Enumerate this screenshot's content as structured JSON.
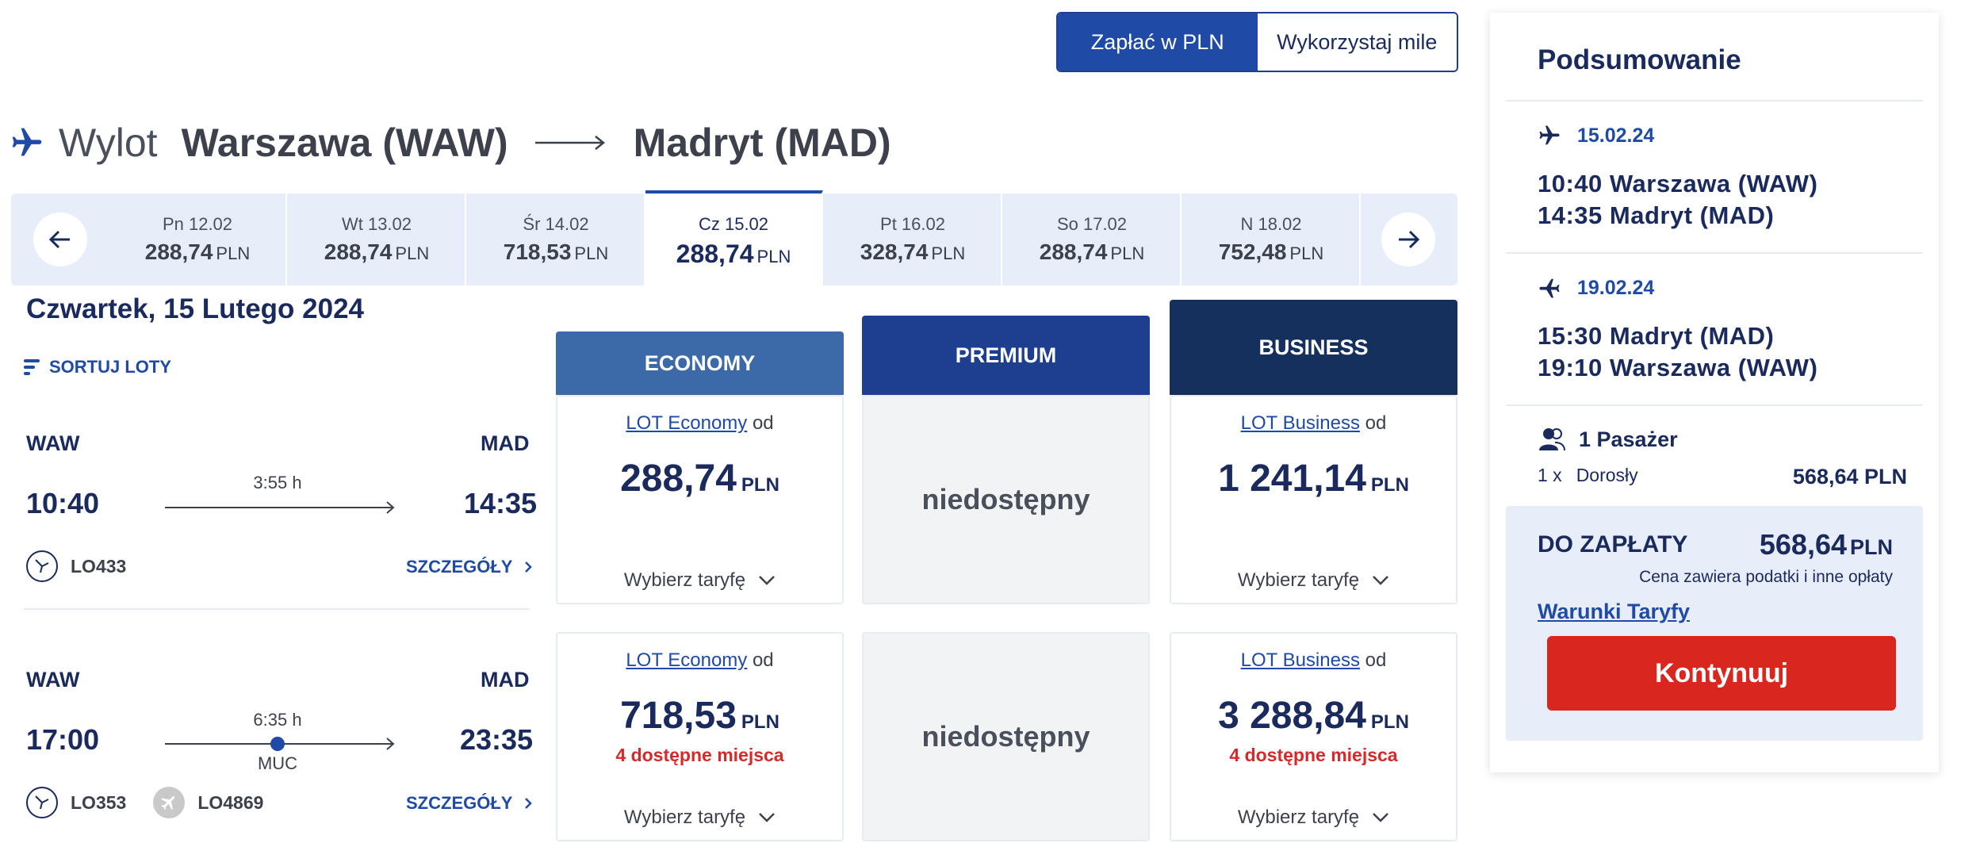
{
  "pay_toggle": {
    "pln": "Zapłać w PLN",
    "miles": "Wykorzystaj mile"
  },
  "route": {
    "label": "Wylot",
    "from": "Warszawa (WAW)",
    "to": "Madryt (MAD)"
  },
  "dates": [
    {
      "day": "Pn 12.02",
      "price": "288,74",
      "cur": "PLN"
    },
    {
      "day": "Wt 13.02",
      "price": "288,74",
      "cur": "PLN"
    },
    {
      "day": "Śr 14.02",
      "price": "718,53",
      "cur": "PLN"
    },
    {
      "day": "Cz 15.02",
      "price": "288,74",
      "cur": "PLN"
    },
    {
      "day": "Pt 16.02",
      "price": "328,74",
      "cur": "PLN"
    },
    {
      "day": "So 17.02",
      "price": "288,74",
      "cur": "PLN"
    },
    {
      "day": "N 18.02",
      "price": "752,48",
      "cur": "PLN"
    }
  ],
  "day_title": "Czwartek, 15 Lutego 2024",
  "sort_label": "SORTUJ LOTY",
  "cabins": {
    "economy": "ECONOMY",
    "premium": "PREMIUM",
    "business": "BUSINESS"
  },
  "flights": [
    {
      "origin": "WAW",
      "dest": "MAD",
      "dep": "10:40",
      "arr": "14:35",
      "duration": "3:55 h",
      "stop": "",
      "numbers": [
        "LO433"
      ],
      "details": "SZCZEGÓŁY",
      "economy": {
        "fare": "LOT Economy",
        "od": "od",
        "price": "288,74",
        "cur": "PLN",
        "seats": "",
        "choose": "Wybierz taryfę"
      },
      "premium": "niedostępny",
      "business": {
        "fare": "LOT Business",
        "od": "od",
        "price": "1 241,14",
        "cur": "PLN",
        "seats": "",
        "choose": "Wybierz taryfę"
      }
    },
    {
      "origin": "WAW",
      "dest": "MAD",
      "dep": "17:00",
      "arr": "23:35",
      "duration": "6:35 h",
      "stop": "MUC",
      "numbers": [
        "LO353",
        "LO4869"
      ],
      "details": "SZCZEGÓŁY",
      "economy": {
        "fare": "LOT Economy",
        "od": "od",
        "price": "718,53",
        "cur": "PLN",
        "seats": "4 dostępne miejsca",
        "choose": "Wybierz taryfę"
      },
      "premium": "niedostępny",
      "business": {
        "fare": "LOT Business",
        "od": "od",
        "price": "3 288,84",
        "cur": "PLN",
        "seats": "4 dostępne miejsca",
        "choose": "Wybierz taryfę"
      }
    }
  ],
  "summary": {
    "title": "Podsumowanie",
    "outbound": {
      "date": "15.02.24",
      "dep": "10:40  Warszawa  (WAW)",
      "arr": "14:35  Madryt  (MAD)"
    },
    "inbound": {
      "date": "19.02.24",
      "dep": "15:30  Madryt  (MAD)",
      "arr": "19:10  Warszawa  (WAW)"
    },
    "pax": "1 Pasażer",
    "pax_line": {
      "qty": "1  x",
      "type": "Dorosły",
      "amount": "568,64 PLN"
    },
    "total_label": "DO ZAPŁATY",
    "total": "568,64",
    "total_cur": "PLN",
    "note": "Cena zawiera podatki i inne opłaty",
    "terms": "Warunki Taryfy",
    "continue": "Kontynuuj"
  },
  "colors": {
    "primary": "#1f4aa5",
    "navy": "#1b2a5c",
    "economy": "#3c6aa8",
    "premium": "#1e3f8f",
    "business": "#16305e",
    "cta": "#d9261e",
    "alert": "#d42a2a"
  }
}
